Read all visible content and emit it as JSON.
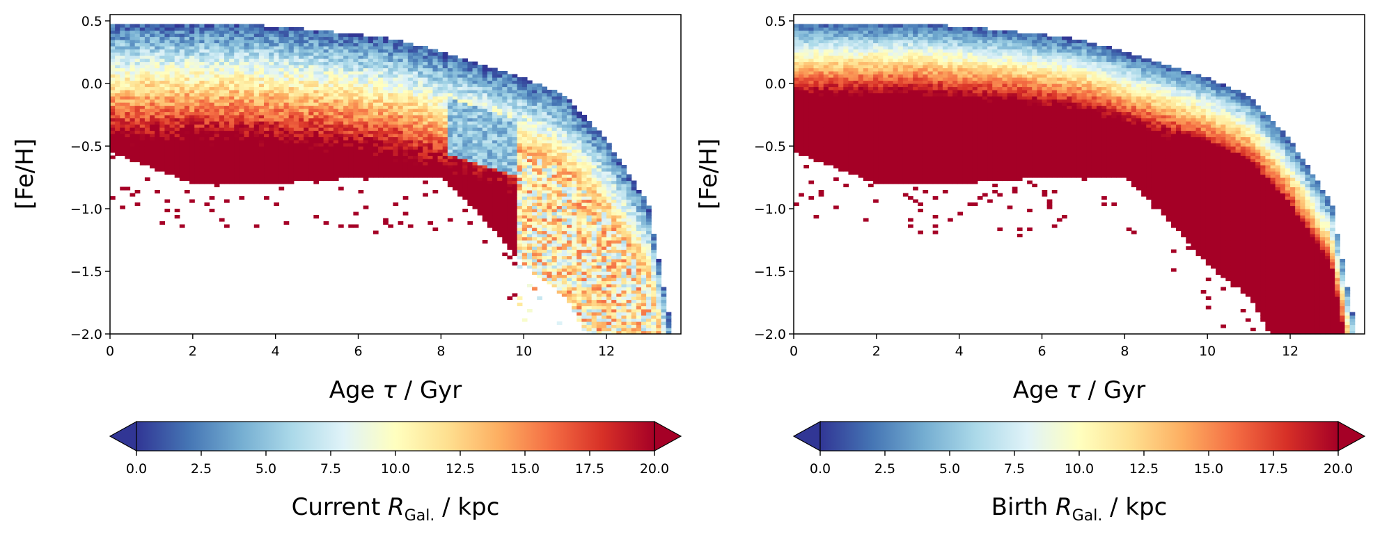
{
  "chart_data": [
    {
      "type": "heatmap",
      "title": "",
      "xlabel": {
        "main": "Age ",
        "symbol": "τ",
        "rest": " / Gyr"
      },
      "ylabel": "[Fe/H]",
      "xlim": [
        0,
        13.8
      ],
      "ylim": [
        -2.0,
        0.55
      ],
      "xticks": [
        0,
        2,
        4,
        6,
        8,
        10,
        12
      ],
      "yticks": [
        0.5,
        0.0,
        -0.5,
        -1.0,
        -1.5,
        -2.0
      ],
      "xtick_labels": [
        "0",
        "2",
        "4",
        "6",
        "8",
        "10",
        "12"
      ],
      "ytick_labels": [
        "0.5",
        "0.0",
        "−0.5",
        "−1.0",
        "−1.5",
        "−2.0"
      ],
      "colorbar": {
        "label": {
          "prefix": "Current ",
          "symbol": "R",
          "sub": "Gal.",
          "unit": " / kpc"
        },
        "range": [
          0,
          20
        ],
        "extend": "both",
        "colormap": "RdYlBu_r",
        "ticks": [
          0.0,
          2.5,
          5.0,
          7.5,
          10.0,
          12.5,
          15.0,
          17.5,
          20.0
        ],
        "tick_labels": [
          "0.0",
          "2.5",
          "5.0",
          "7.5",
          "10.0",
          "12.5",
          "15.0",
          "17.5",
          "20.0"
        ]
      },
      "distribution": {
        "upper_edge": [
          [
            0,
            0.48
          ],
          [
            3,
            0.48
          ],
          [
            5,
            0.43
          ],
          [
            7,
            0.35
          ],
          [
            8.5,
            0.2
          ],
          [
            10,
            0.05
          ],
          [
            11,
            -0.1
          ],
          [
            12,
            -0.45
          ],
          [
            13,
            -0.95
          ],
          [
            13.6,
            -2.0
          ]
        ],
        "lower_edge": [
          [
            0,
            -0.55
          ],
          [
            2,
            -0.8
          ],
          [
            4,
            -0.8
          ],
          [
            6,
            -0.75
          ],
          [
            8,
            -0.75
          ],
          [
            8.8,
            -1.0
          ],
          [
            10,
            -1.45
          ],
          [
            11,
            -1.7
          ],
          [
            11.5,
            -2.0
          ]
        ],
        "color_trend": "current radius rises from ~0 kpc at the metal-rich upper edge to >17 kpc at the metal-poor lower edge; blue ridge (~5 kpc) near 8.5–9.5 Gyr"
      }
    },
    {
      "type": "heatmap",
      "title": "",
      "xlabel": {
        "main": "Age ",
        "symbol": "τ",
        "rest": " / Gyr"
      },
      "ylabel": "[Fe/H]",
      "xlim": [
        0,
        13.8
      ],
      "ylim": [
        -2.0,
        0.55
      ],
      "xticks": [
        0,
        2,
        4,
        6,
        8,
        10,
        12
      ],
      "yticks": [
        0.5,
        0.0,
        -0.5,
        -1.0,
        -1.5,
        -2.0
      ],
      "xtick_labels": [
        "0",
        "2",
        "4",
        "6",
        "8",
        "10",
        "12"
      ],
      "ytick_labels": [
        "0.5",
        "0.0",
        "−0.5",
        "−1.0",
        "−1.5",
        "−2.0"
      ],
      "colorbar": {
        "label": {
          "prefix": "Birth ",
          "symbol": "R",
          "sub": "Gal.",
          "unit": " / kpc"
        },
        "range": [
          0,
          20
        ],
        "extend": "both",
        "colormap": "RdYlBu_r",
        "ticks": [
          0.0,
          2.5,
          5.0,
          7.5,
          10.0,
          12.5,
          15.0,
          17.5,
          20.0
        ],
        "tick_labels": [
          "0.0",
          "2.5",
          "5.0",
          "7.5",
          "10.0",
          "12.5",
          "15.0",
          "17.5",
          "20.0"
        ]
      },
      "distribution": {
        "upper_edge": [
          [
            0,
            0.48
          ],
          [
            3,
            0.48
          ],
          [
            5,
            0.43
          ],
          [
            7,
            0.35
          ],
          [
            8.5,
            0.2
          ],
          [
            10,
            0.05
          ],
          [
            11,
            -0.1
          ],
          [
            12,
            -0.45
          ],
          [
            13,
            -0.95
          ],
          [
            13.6,
            -2.0
          ]
        ],
        "lower_edge": [
          [
            0,
            -0.55
          ],
          [
            2,
            -0.8
          ],
          [
            4,
            -0.8
          ],
          [
            6,
            -0.75
          ],
          [
            8,
            -0.75
          ],
          [
            8.8,
            -1.0
          ],
          [
            10,
            -1.45
          ],
          [
            11,
            -1.7
          ],
          [
            11.5,
            -2.0
          ]
        ],
        "color_trend": "birth radius rises steeply from ~0 kpc at the metal-rich edge to saturated (>20 kpc) below [Fe/H] ≈ −0.4; saturated red wedge from ~9 to 13 Gyr"
      }
    }
  ]
}
